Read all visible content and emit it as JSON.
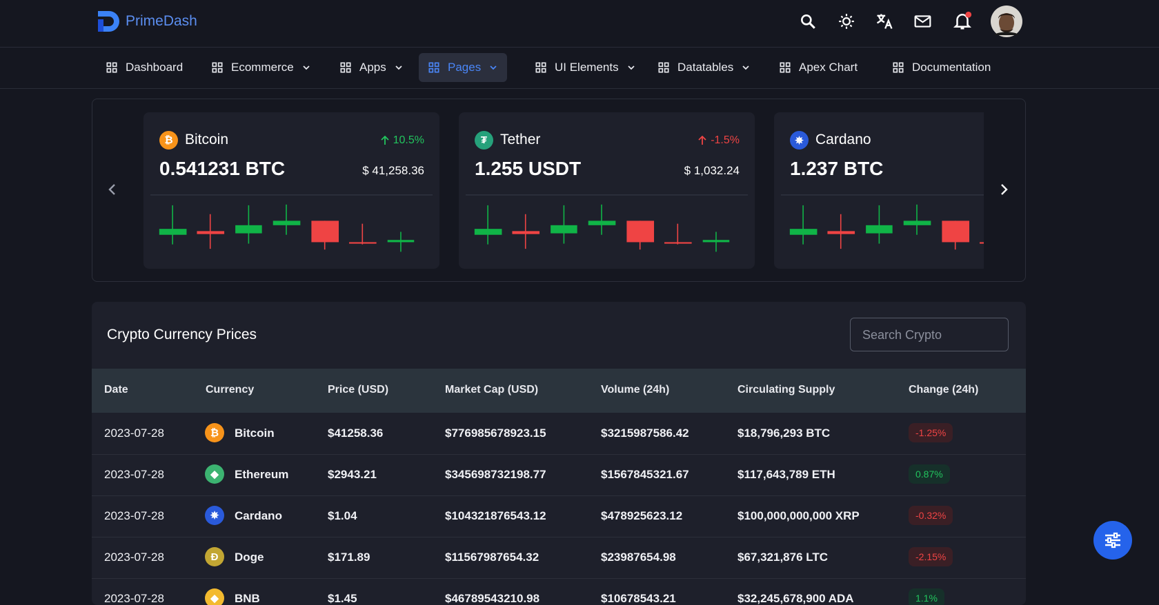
{
  "header": {
    "brand": "PrimeDash"
  },
  "nav": [
    "Dashboard",
    "Ecommerce",
    "Apps",
    "Pages",
    "UI Elements",
    "Datatables",
    "Apex Chart",
    "Documentation"
  ],
  "cards": [
    {
      "coin": "Bitcoin",
      "change": "10.5%",
      "amount": "0.541231 BTC",
      "usd": "$ 41,258.36"
    },
    {
      "coin": "Tether",
      "change": "-1.5%",
      "amount": "1.255 USDT",
      "usd": "$ 1,032.24"
    },
    {
      "coin": "Cardano",
      "amount": "1.237 BTC"
    }
  ],
  "table": {
    "title": "Crypto Currency Prices",
    "search_placeholder": "Search Crypto",
    "columns": [
      "Date",
      "Currency",
      "Price (USD)",
      "Market Cap (USD)",
      "Volume (24h)",
      "Circulating Supply",
      "Change (24h)"
    ],
    "rows": [
      [
        "2023-07-28",
        "Bitcoin",
        "$41258.36",
        "$776985678923.15",
        "$3215987586.42",
        "$18,796,293 BTC",
        "-1.25%"
      ],
      [
        "2023-07-28",
        "Ethereum",
        "$2943.21",
        "$345698732198.77",
        "$1567845321.67",
        "$117,643,789 ETH",
        "0.87%"
      ],
      [
        "2023-07-28",
        "Cardano",
        "$1.04",
        "$104321876543.12",
        "$478925623.12",
        "$100,000,000,000 XRP",
        "-0.32%"
      ],
      [
        "2023-07-28",
        "Doge",
        "$171.89",
        "$11567987654.32",
        "$23987654.98",
        "$67,321,876 LTC",
        "-2.15%"
      ],
      [
        "2023-07-28",
        "BNB",
        "$1.45",
        "$46789543210.98",
        "$10678543.21",
        "$32,245,678,900 ADA",
        "1.1%"
      ]
    ]
  }
}
